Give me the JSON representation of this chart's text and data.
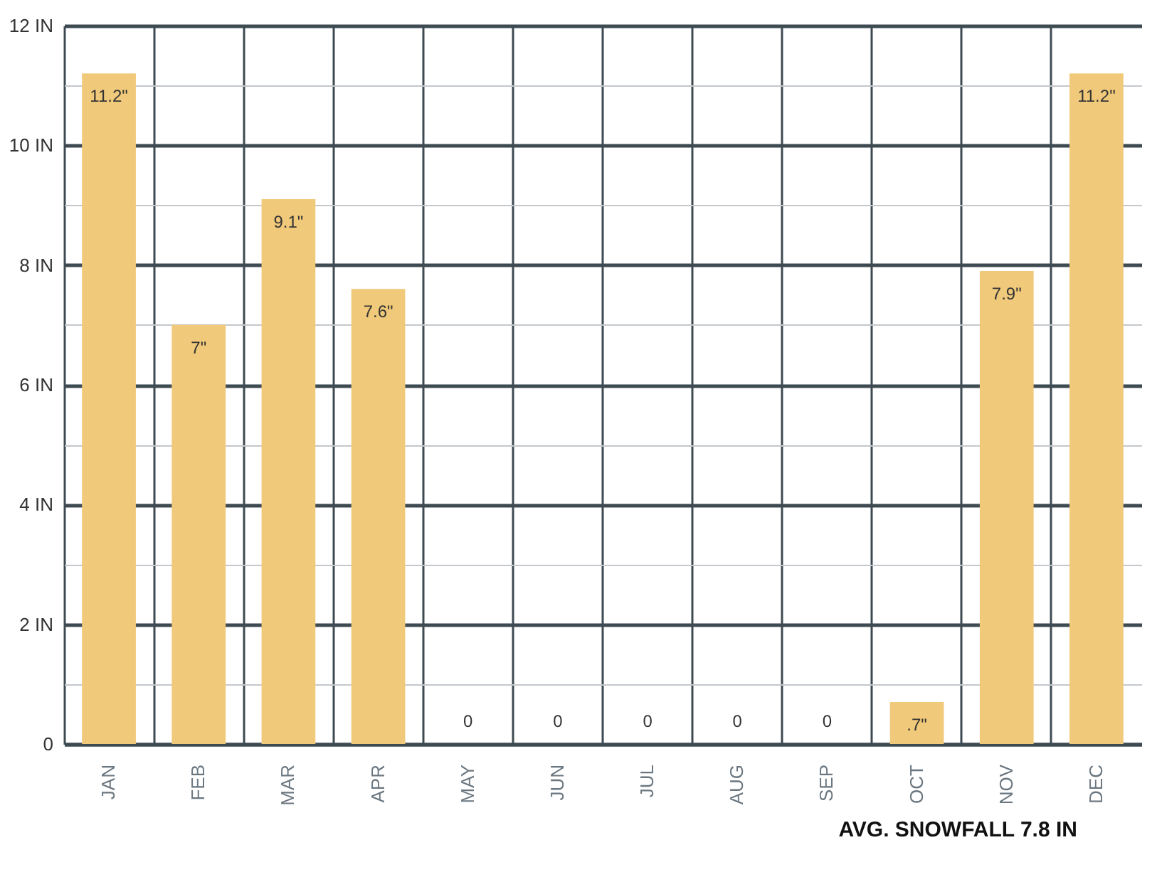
{
  "chart_data": {
    "type": "bar",
    "categories": [
      "JAN",
      "FEB",
      "MAR",
      "APR",
      "MAY",
      "JUN",
      "JUL",
      "AUG",
      "SEP",
      "OCT",
      "NOV",
      "DEC"
    ],
    "values": [
      11.2,
      7,
      9.1,
      7.6,
      0,
      0,
      0,
      0,
      0,
      0.7,
      7.9,
      11.2
    ],
    "value_labels": [
      "11.2\"",
      "7\"",
      "9.1\"",
      "7.6\"",
      "0",
      "0",
      "0",
      "0",
      "0",
      ".7\"",
      "7.9\"",
      "11.2\""
    ],
    "color": "#f0c97a",
    "ylim": [
      0,
      12
    ],
    "yticks": [
      0,
      {
        "value": 1,
        "label": null
      },
      {
        "value": 2,
        "label": "2 IN"
      },
      {
        "value": 3,
        "label": null
      },
      {
        "value": 4,
        "label": "4 IN"
      },
      {
        "value": 5,
        "label": null
      },
      {
        "value": 6,
        "label": "6 IN"
      },
      {
        "value": 7,
        "label": null
      },
      {
        "value": 8,
        "label": "8 IN"
      },
      {
        "value": 9,
        "label": null
      },
      {
        "value": 10,
        "label": "10 IN"
      },
      {
        "value": 11,
        "label": null
      },
      {
        "value": 12,
        "label": "12 IN"
      }
    ],
    "grid": true,
    "annotations": [
      "AVG. SNOWFALL 7.8 IN"
    ]
  }
}
